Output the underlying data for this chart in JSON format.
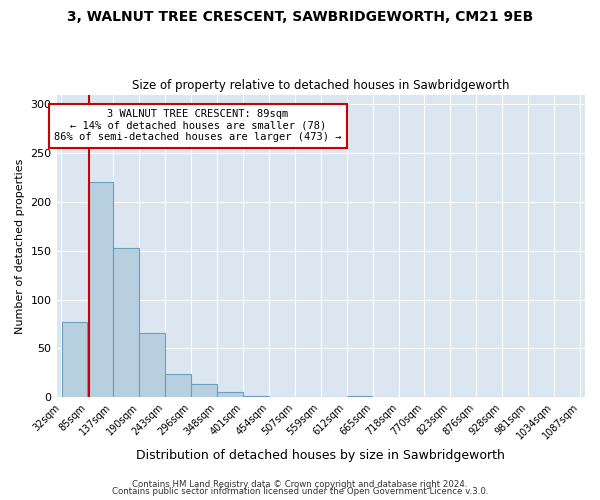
{
  "title": "3, WALNUT TREE CRESCENT, SAWBRIDGEWORTH, CM21 9EB",
  "subtitle": "Size of property relative to detached houses in Sawbridgeworth",
  "xlabel": "Distribution of detached houses by size in Sawbridgeworth",
  "ylabel": "Number of detached properties",
  "fig_bg_color": "#ffffff",
  "plot_bg_color": "#dce6f0",
  "bar_color": "#b8cfe0",
  "bar_edge_color": "#6a9ec0",
  "reference_line_x": 89,
  "bin_edges": [
    32,
    85,
    137,
    190,
    243,
    296,
    348,
    401,
    454,
    507,
    559,
    612,
    665,
    718,
    770,
    823,
    876,
    928,
    981,
    1034,
    1087
  ],
  "bin_labels": [
    "32sqm",
    "85sqm",
    "137sqm",
    "190sqm",
    "243sqm",
    "296sqm",
    "348sqm",
    "401sqm",
    "454sqm",
    "507sqm",
    "559sqm",
    "612sqm",
    "665sqm",
    "718sqm",
    "770sqm",
    "823sqm",
    "876sqm",
    "928sqm",
    "981sqm",
    "1034sqm",
    "1087sqm"
  ],
  "bar_heights": [
    77,
    220,
    153,
    66,
    24,
    13,
    5,
    1,
    0,
    0,
    0,
    1,
    0,
    0,
    0,
    0,
    0,
    0,
    0,
    0
  ],
  "ylim": [
    0,
    310
  ],
  "yticks": [
    0,
    50,
    100,
    150,
    200,
    250,
    300
  ],
  "annotation_title": "3 WALNUT TREE CRESCENT: 89sqm",
  "annotation_line1": "← 14% of detached houses are smaller (78)",
  "annotation_line2": "86% of semi-detached houses are larger (473) →",
  "annotation_box_color": "#ffffff",
  "annotation_box_edge": "#cc0000",
  "footnote1": "Contains HM Land Registry data © Crown copyright and database right 2024.",
  "footnote2": "Contains public sector information licensed under the Open Government Licence v.3.0.",
  "grid_color": "#ffffff",
  "ref_line_color": "#cc0000"
}
